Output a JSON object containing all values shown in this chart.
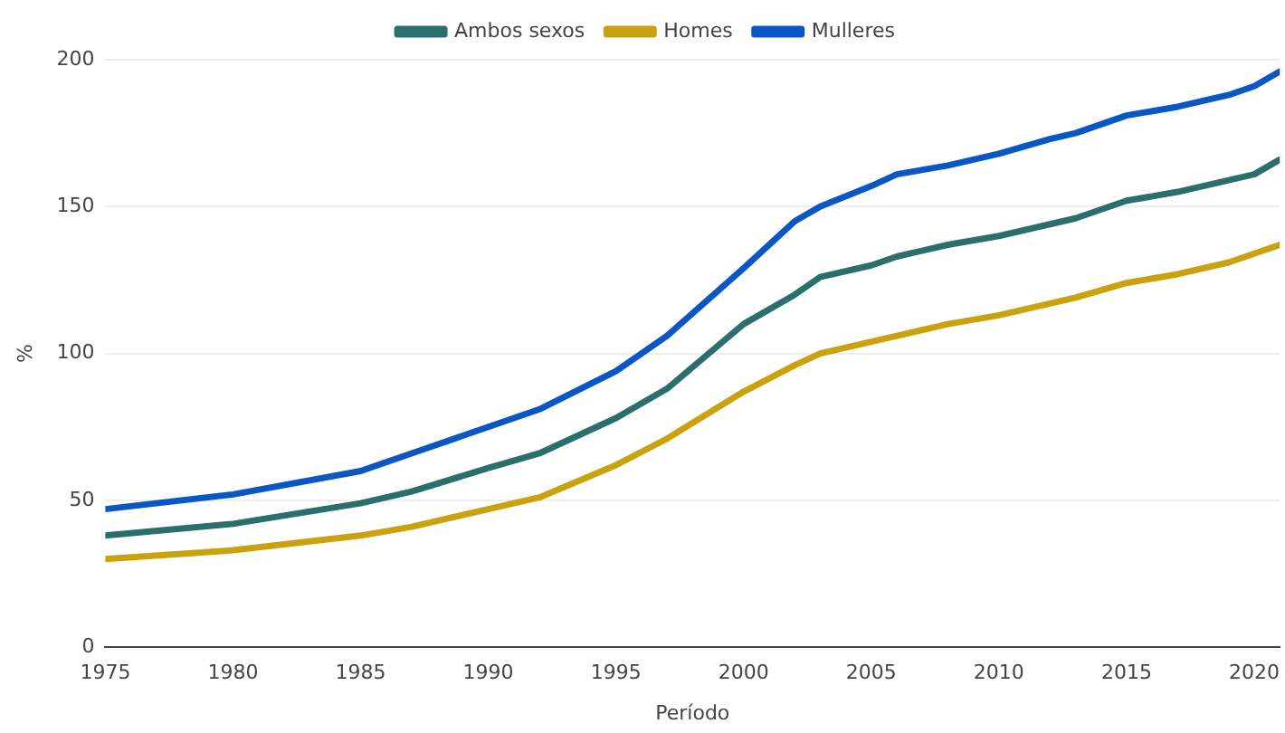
{
  "chart_data": {
    "type": "line",
    "xlabel": "Período",
    "ylabel": "%",
    "x": [
      1975,
      1980,
      1985,
      1987,
      1990,
      1992,
      1995,
      1997,
      2000,
      2002,
      2003,
      2005,
      2006,
      2008,
      2010,
      2012,
      2013,
      2015,
      2017,
      2019,
      2020,
      2021
    ],
    "series": [
      {
        "name": "Ambos sexos",
        "color": "#2a6f6c",
        "values": [
          38,
          42,
          49,
          53,
          61,
          66,
          78,
          88,
          110,
          120,
          126,
          130,
          133,
          137,
          140,
          144,
          146,
          152,
          155,
          159,
          161,
          166
        ]
      },
      {
        "name": "Homes",
        "color": "#c9a20e",
        "values": [
          30,
          33,
          38,
          41,
          47,
          51,
          62,
          71,
          87,
          96,
          100,
          104,
          106,
          110,
          113,
          117,
          119,
          124,
          127,
          131,
          134,
          137
        ]
      },
      {
        "name": "Mulleres",
        "color": "#0a56c4",
        "values": [
          47,
          52,
          60,
          66,
          75,
          81,
          94,
          106,
          129,
          145,
          150,
          157,
          161,
          164,
          168,
          173,
          175,
          181,
          184,
          188,
          191,
          196
        ]
      }
    ],
    "xlim": [
      1975,
      2021
    ],
    "xticks": [
      1975,
      1980,
      1985,
      1990,
      1995,
      2000,
      2005,
      2010,
      2015,
      2020
    ],
    "ylim": [
      0,
      200
    ],
    "yticks": [
      0,
      50,
      100,
      150,
      200
    ],
    "grid": "y",
    "legend": "top",
    "marker": "none",
    "line_style": "solid"
  }
}
